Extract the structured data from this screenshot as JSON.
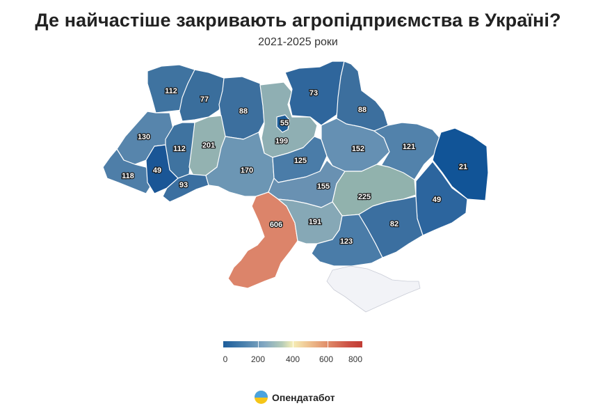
{
  "header": {
    "title": "Де найчастіше закривають агропідприємства в Україні?",
    "subtitle": "2021-2025 роки"
  },
  "map_data": {
    "type": "choropleth",
    "country": "Ukraine",
    "color_scale": [
      "#1d5d9b",
      "#4b81ad",
      "#84a9c2",
      "#f6eeb6",
      "#e08c69",
      "#c13b34"
    ],
    "no_data_color": "#f2f3f7",
    "regions": [
      {
        "id": "volyn",
        "value": 112,
        "color": "#3f73a0"
      },
      {
        "id": "rivne",
        "value": 77,
        "color": "#3a6e9c"
      },
      {
        "id": "zhytomyr",
        "value": 88,
        "color": "#3c6f9e"
      },
      {
        "id": "kyiv-oblast",
        "value": 199,
        "color": "#8fafb3"
      },
      {
        "id": "kyiv-city",
        "value": 55,
        "color": "#1f5e98"
      },
      {
        "id": "chernihiv",
        "value": 73,
        "color": "#2f669c"
      },
      {
        "id": "sumy",
        "value": 88,
        "color": "#3c6f9e"
      },
      {
        "id": "lviv",
        "value": 130,
        "color": "#5785ac"
      },
      {
        "id": "ternopil",
        "value": 112,
        "color": "#3f73a0"
      },
      {
        "id": "khmelnytskyi",
        "value": 201,
        "color": "#93b2b1"
      },
      {
        "id": "zakarpattia",
        "value": 118,
        "color": "#4e7ea8"
      },
      {
        "id": "ivano-frankivsk",
        "value": 49,
        "color": "#1a5696"
      },
      {
        "id": "chernivtsi",
        "value": 93,
        "color": "#3b6fa0"
      },
      {
        "id": "vinnytsia",
        "value": 170,
        "color": "#6c96b4"
      },
      {
        "id": "cherkasy",
        "value": 125,
        "color": "#4a7ca8"
      },
      {
        "id": "poltava",
        "value": 152,
        "color": "#6590b3"
      },
      {
        "id": "kharkiv",
        "value": 121,
        "color": "#5282ab"
      },
      {
        "id": "luhansk",
        "value": 21,
        "color": "#115497"
      },
      {
        "id": "kirovohrad",
        "value": 155,
        "color": "#6991b2"
      },
      {
        "id": "dnipropetrovsk",
        "value": 225,
        "color": "#91b2ad"
      },
      {
        "id": "donetsk",
        "value": 49,
        "color": "#2c659e"
      },
      {
        "id": "odesa",
        "value": 606,
        "color": "#dc846a"
      },
      {
        "id": "mykolaiv",
        "value": 191,
        "color": "#86a8b6"
      },
      {
        "id": "zaporizhzhia",
        "value": 82,
        "color": "#3b6fa0"
      },
      {
        "id": "kherson",
        "value": 123,
        "color": "#4a7ca8"
      },
      {
        "id": "crimea",
        "value": null,
        "color": "#f2f3f7"
      }
    ]
  },
  "legend": {
    "ticks": [
      "0",
      "200",
      "400",
      "600",
      "800"
    ],
    "min": 0,
    "max": 800
  },
  "brand": {
    "name": "Опендатабот"
  }
}
